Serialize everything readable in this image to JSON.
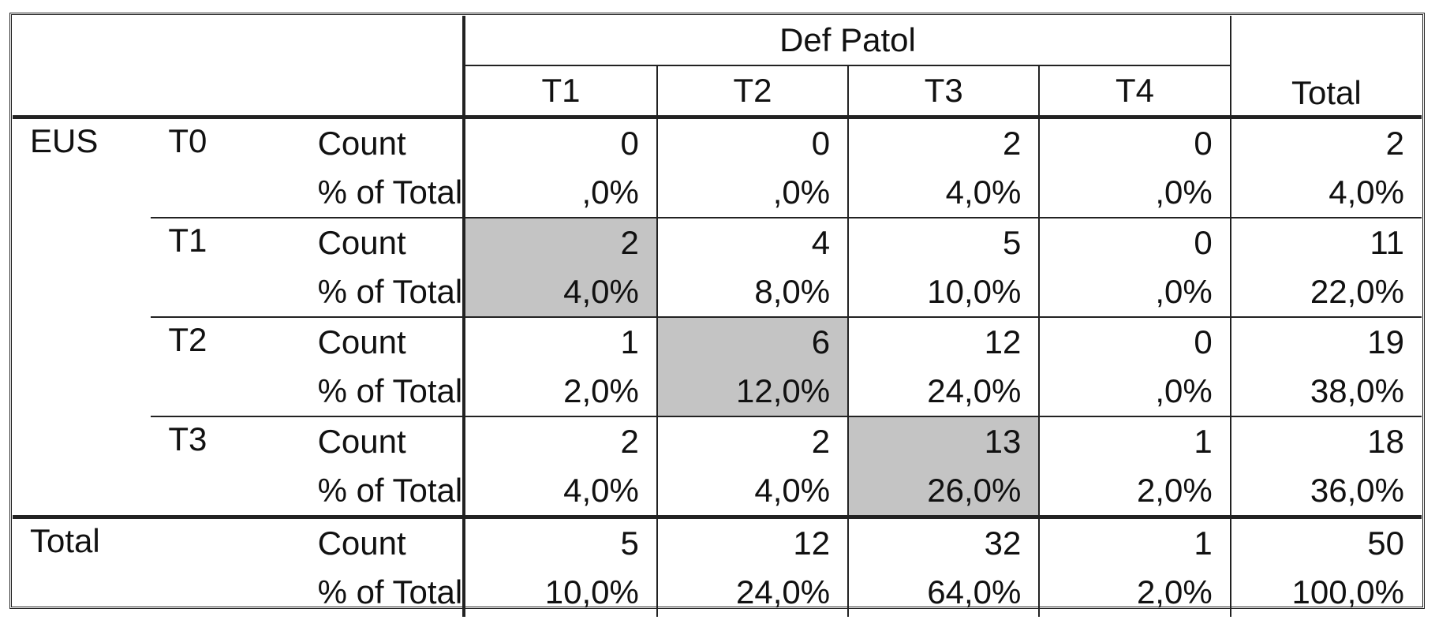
{
  "table": {
    "column_group_label": "Def Patol",
    "columns": [
      "T1",
      "T2",
      "T3",
      "T4"
    ],
    "total_label": "Total",
    "row_variable": "EUS",
    "stat_labels": {
      "count": "Count",
      "pct": "% of Total"
    },
    "groups": [
      {
        "label": "T0",
        "count": [
          "0",
          "0",
          "2",
          "0",
          "2"
        ],
        "pct": [
          ",0%",
          ",0%",
          "4,0%",
          ",0%",
          "4,0%"
        ],
        "highlight_col": null
      },
      {
        "label": "T1",
        "count": [
          "2",
          "4",
          "5",
          "0",
          "11"
        ],
        "pct": [
          "4,0%",
          "8,0%",
          "10,0%",
          ",0%",
          "22,0%"
        ],
        "highlight_col": 0
      },
      {
        "label": "T2",
        "count": [
          "1",
          "6",
          "12",
          "0",
          "19"
        ],
        "pct": [
          "2,0%",
          "12,0%",
          "24,0%",
          ",0%",
          "38,0%"
        ],
        "highlight_col": 1
      },
      {
        "label": "T3",
        "count": [
          "2",
          "2",
          "13",
          "1",
          "18"
        ],
        "pct": [
          "4,0%",
          "4,0%",
          "26,0%",
          "2,0%",
          "36,0%"
        ],
        "highlight_col": 2
      }
    ],
    "total_row": {
      "label": "Total",
      "count": [
        "5",
        "12",
        "32",
        "1",
        "50"
      ],
      "pct": [
        "10,0%",
        "24,0%",
        "64,0%",
        "2,0%",
        "100,0%"
      ]
    },
    "highlight_color": "#c4c4c4"
  }
}
